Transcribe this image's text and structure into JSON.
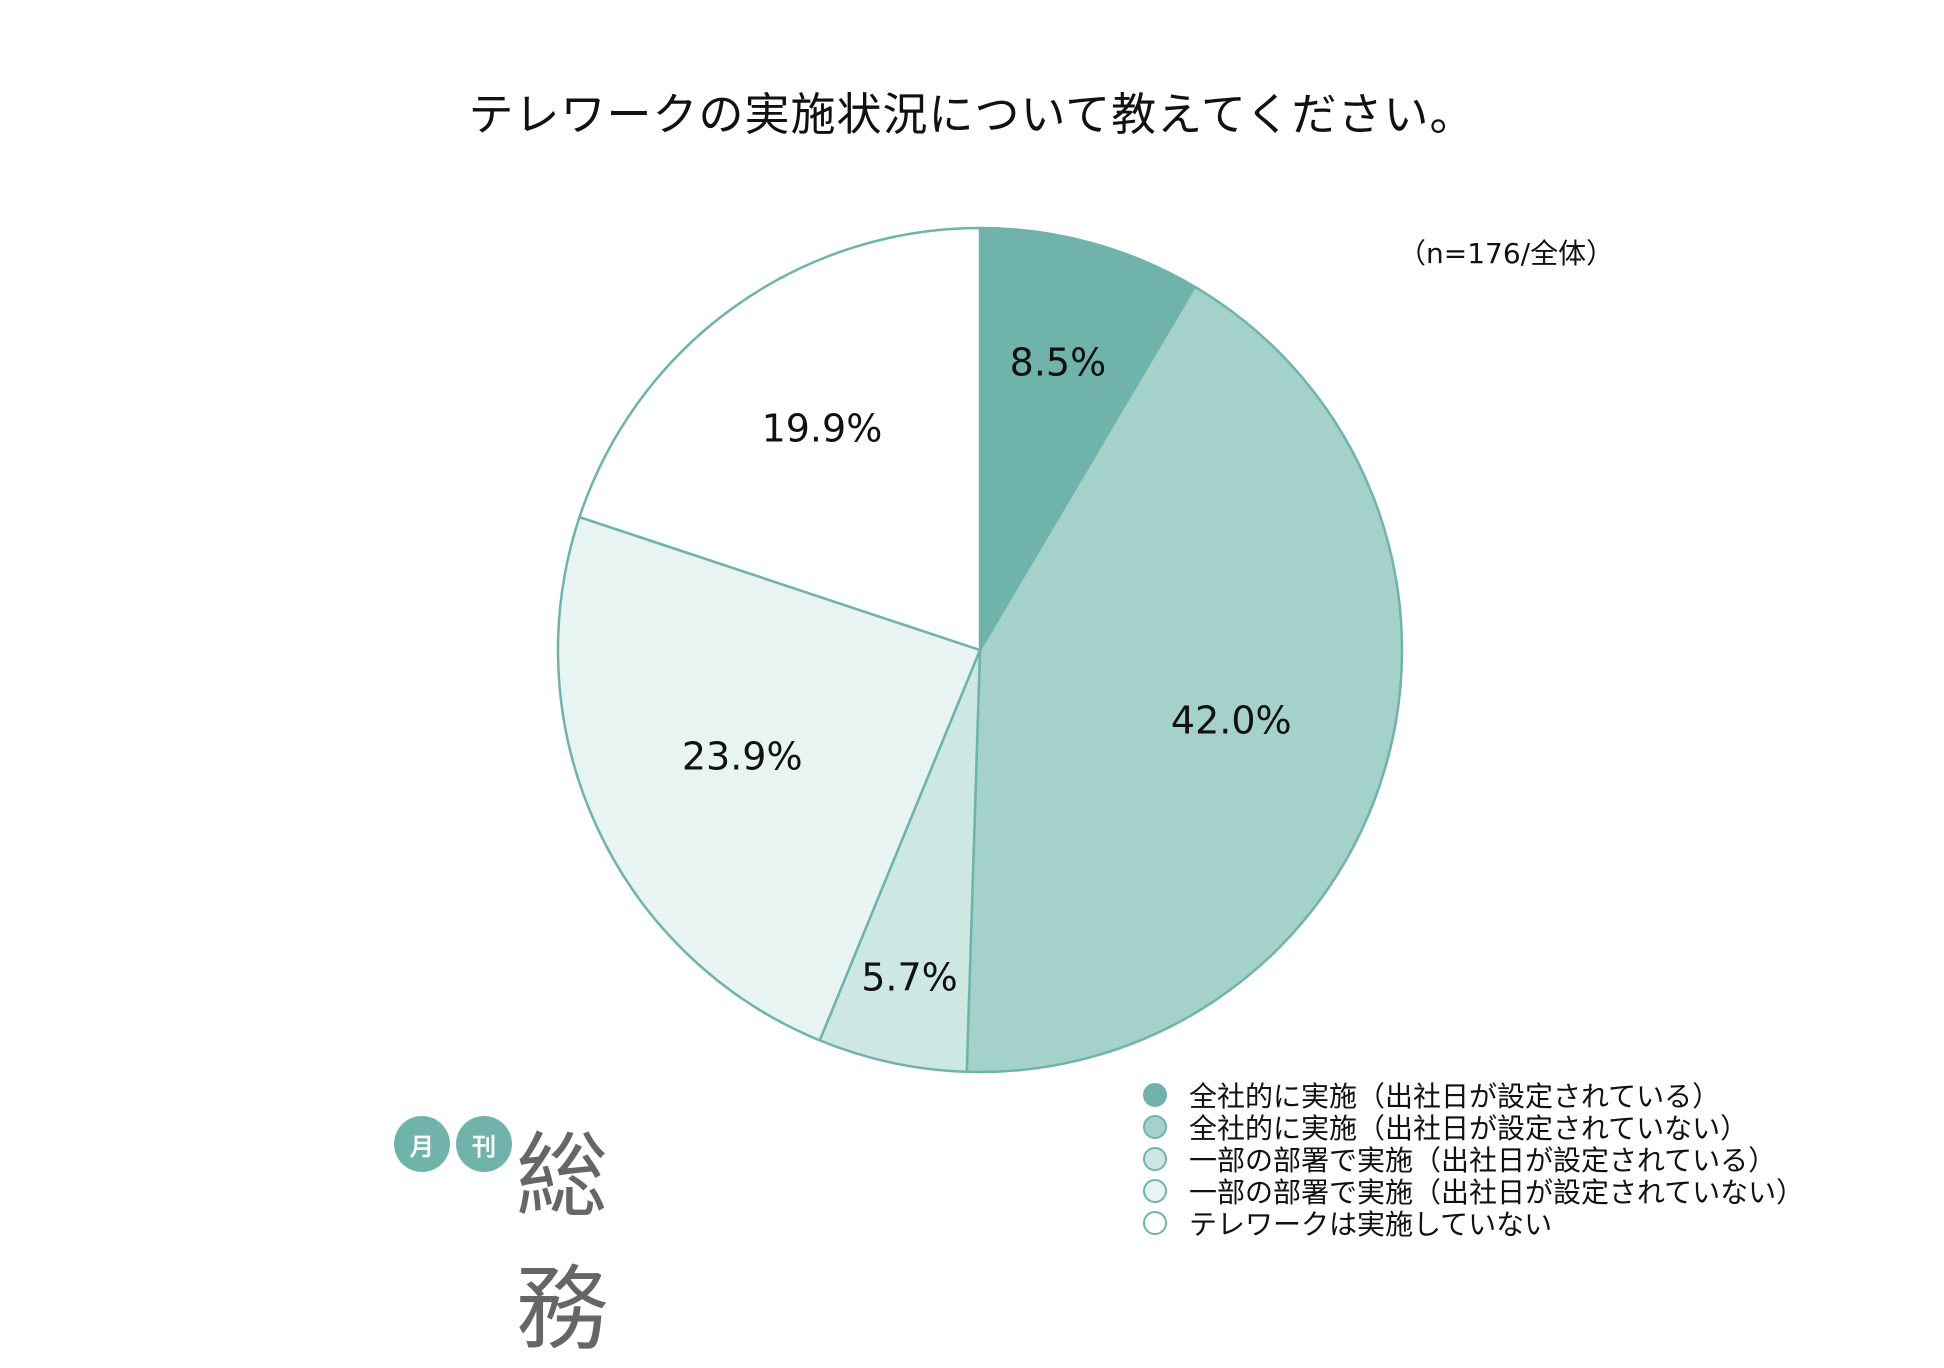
{
  "title": "テレワークの実施状況について教えてください。",
  "note": "（n=176/全体）",
  "logo": {
    "badge1": "月",
    "badge2": "刊",
    "word": "総務"
  },
  "colors": {
    "border": "#6fb3ab",
    "slices": [
      "#6fb3ab",
      "#a5d1cb",
      "#cde7e3",
      "#e7f4f2",
      "#ffffff"
    ]
  },
  "chart_data": {
    "type": "pie",
    "title": "テレワークの実施状況について教えてください。",
    "start": "12 o'clock, clockwise",
    "legend_position": "bottom-right",
    "slices": [
      {
        "label": "全社的に実施（出社日が設定されている）",
        "value": 8.5,
        "value_label": "8.5%"
      },
      {
        "label": "全社的に実施（出社日が設定されていない）",
        "value": 42.0,
        "value_label": "42.0%"
      },
      {
        "label": "一部の部署で実施（出社日が設定されている）",
        "value": 5.7,
        "value_label": "5.7%"
      },
      {
        "label": "一部の部署で実施（出社日が設定されていない）",
        "value": 23.9,
        "value_label": "23.9%"
      },
      {
        "label": "テレワークは実施していない",
        "value": 19.9,
        "value_label": "19.9%"
      }
    ]
  }
}
